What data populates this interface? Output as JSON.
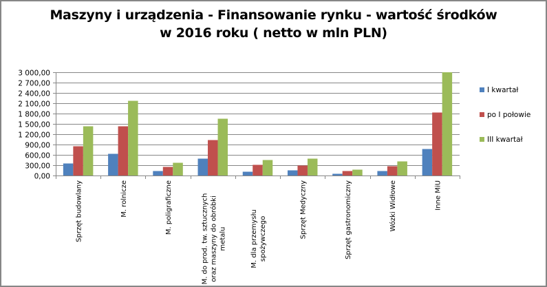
{
  "chart_data": {
    "type": "bar",
    "title": "Maszyny i urządzenia - Finansowanie rynku - wartość środków w 2016 roku ( netto w mln PLN)",
    "title_lines": [
      "Maszyny i urządzenia - Finansowanie rynku - wartość środków",
      "w 2016 roku ( netto w mln PLN)"
    ],
    "xlabel": "",
    "ylabel": "",
    "ylim": [
      0,
      3000
    ],
    "yticks": [
      0,
      300,
      600,
      900,
      1200,
      1500,
      1800,
      2100,
      2400,
      2700,
      3000
    ],
    "ytick_labels": [
      "0,00",
      "300,00",
      "600,00",
      "900,00",
      "1 200,00",
      "1 500,00",
      "1 800,00",
      "2 100,00",
      "2 400,00",
      "2 700,00",
      "3 000,00"
    ],
    "grid": true,
    "legend_position": "right",
    "categories": [
      "Sprzęt budowlany",
      "M. rolnicze",
      "M. poligraficzne",
      "M. do prod. tw. sztucznych oraz maszyny do obróbki metalu",
      "M. dla przemysłu spożywczego",
      "Sprzęt Medyczny",
      "Sprzęt gastronomiczny",
      "Wózki Widłowe",
      "Inne MiU"
    ],
    "category_label_lines": [
      [
        "Sprzęt budowlany"
      ],
      [
        "M. rolnicze"
      ],
      [
        "M. poligraficzne"
      ],
      [
        "M. do prod. tw. sztucznych",
        "oraz maszyny do obróbki",
        "metalu"
      ],
      [
        "M. dla przemysłu",
        "spożywczego"
      ],
      [
        "Sprzęt Medyczny"
      ],
      [
        "Sprzęt gastronomiczny"
      ],
      [
        "Wózki Widłowe"
      ],
      [
        "Inne MiU"
      ]
    ],
    "series": [
      {
        "name": "I kwartał",
        "color": "#4F81BD",
        "values": [
          350,
          630,
          130,
          490,
          110,
          150,
          50,
          130,
          770
        ]
      },
      {
        "name": "po I połowie",
        "color": "#C0504D",
        "values": [
          850,
          1430,
          250,
          1030,
          310,
          290,
          130,
          270,
          1830
        ]
      },
      {
        "name": "III kwartał",
        "color": "#9BBB59",
        "values": [
          1430,
          2170,
          370,
          1650,
          450,
          490,
          170,
          410,
          3000
        ]
      }
    ]
  },
  "legend": {
    "items": [
      {
        "label": "I kwartał",
        "color": "#4F81BD"
      },
      {
        "label": "po I połowie",
        "color": "#C0504D"
      },
      {
        "label": "III kwartał",
        "color": "#9BBB59"
      }
    ]
  },
  "colors": {
    "gridline": "#868686",
    "axis": "#868686",
    "border": "#868686"
  }
}
